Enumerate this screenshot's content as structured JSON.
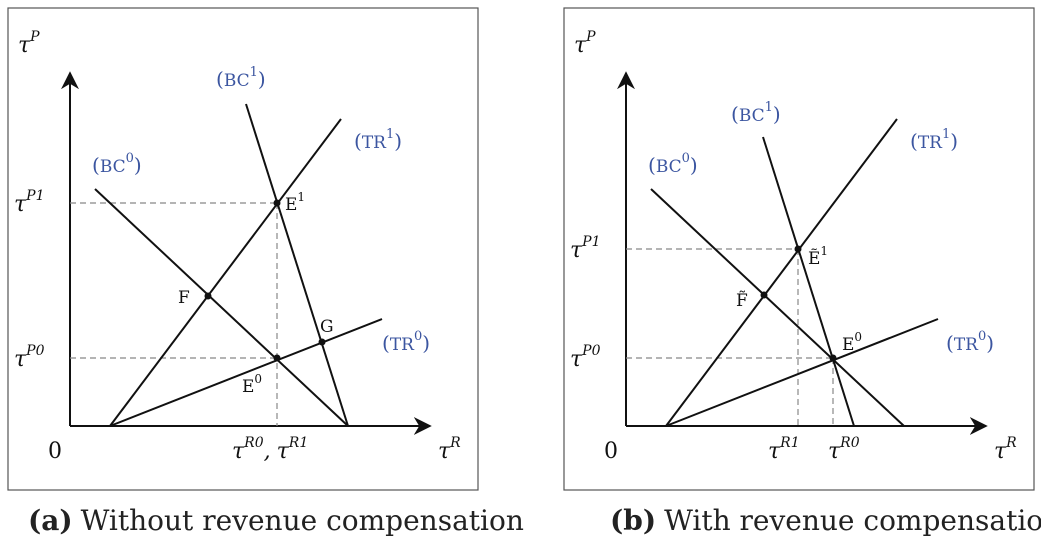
{
  "panel_a": {
    "caption_tag": "(a)",
    "caption_text": "Without revenue compensation",
    "origin": "0",
    "y_axis": {
      "base": "τ",
      "sup": "P"
    },
    "x_axis": {
      "base": "τ",
      "sup": "R"
    },
    "y_ticks": [
      {
        "base": "τ",
        "sup": "P1"
      },
      {
        "base": "τ",
        "sup": "P0"
      }
    ],
    "x_tick": {
      "base1": "τ",
      "sup1": "R0",
      "sep": ",",
      "base2": "τ",
      "sup2": "R1"
    },
    "curves": [
      {
        "name": "BC",
        "sup": "0"
      },
      {
        "name": "BC",
        "sup": "1"
      },
      {
        "name": "TR",
        "sup": "1"
      },
      {
        "name": "TR",
        "sup": "0"
      }
    ],
    "points": [
      {
        "name": "E",
        "sup": "1"
      },
      {
        "name": "F",
        "sup": ""
      },
      {
        "name": "G",
        "sup": ""
      },
      {
        "name": "E",
        "sup": "0"
      }
    ]
  },
  "panel_b": {
    "caption_tag": "(b)",
    "caption_text": "With revenue compensation",
    "origin": "0",
    "y_axis": {
      "base": "τ",
      "sup": "P"
    },
    "x_axis": {
      "base": "τ",
      "sup": "R"
    },
    "y_ticks": [
      {
        "base": "τ",
        "sup": "P1"
      },
      {
        "base": "τ",
        "sup": "P0"
      }
    ],
    "x_ticks": [
      {
        "base": "τ",
        "sup": "R1"
      },
      {
        "base": "τ",
        "sup": "R0"
      }
    ],
    "curves": [
      {
        "name": "BC",
        "sup": "0"
      },
      {
        "name": "BC",
        "sup": "1"
      },
      {
        "name": "TR",
        "sup": "1"
      },
      {
        "name": "TR",
        "sup": "0"
      }
    ],
    "points": [
      {
        "name": "Ẽ",
        "sup": "1"
      },
      {
        "name": "F̃",
        "sup": ""
      },
      {
        "name": "E",
        "sup": "0"
      }
    ]
  },
  "colors": {
    "curve_label": "#3b55a0",
    "line": "#111111",
    "dashed": "#888888"
  }
}
